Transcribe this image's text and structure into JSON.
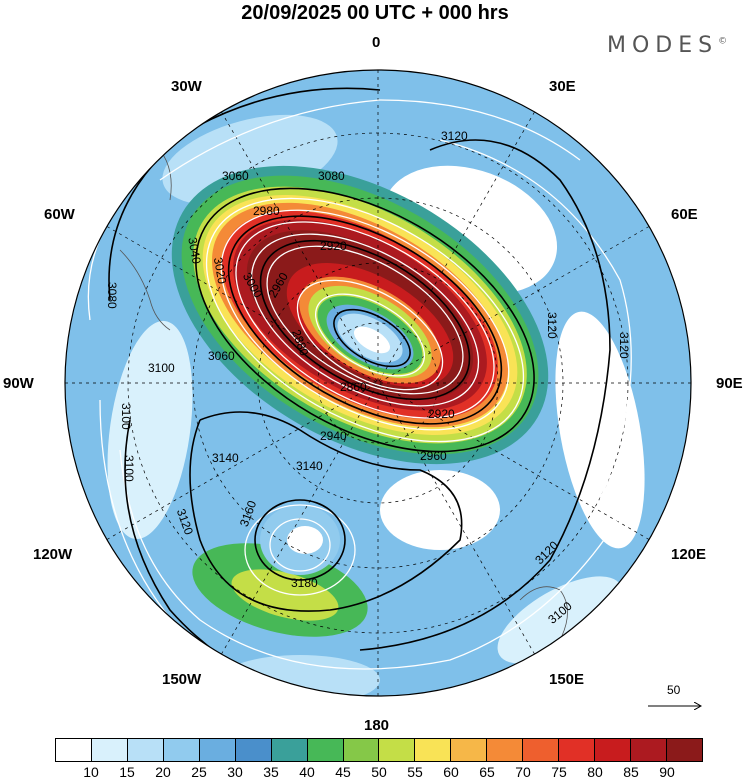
{
  "header": {
    "title": "20/09/2025  00 UTC  + 000 hrs",
    "brand": "MODES",
    "brand_mark": "©"
  },
  "map": {
    "projection": "polar-stereographic",
    "hemisphere": "south",
    "longitude_labels": [
      "0",
      "30E",
      "60E",
      "90E",
      "120E",
      "150E",
      "180",
      "150W",
      "120W",
      "90W",
      "60W",
      "30W"
    ],
    "contour_labels": [
      "3120",
      "3080",
      "3060",
      "2980",
      "2920",
      "3040",
      "3020",
      "3000",
      "2960",
      "2880",
      "2860",
      "2920",
      "2940",
      "2960",
      "3080",
      "3060",
      "3100",
      "3100",
      "3100",
      "3140",
      "3140",
      "3160",
      "3180",
      "3120",
      "3120",
      "3120",
      "3100",
      "3120"
    ],
    "vector_reference": "50"
  },
  "colorbar": {
    "colors": [
      "#ffffff",
      "#d9f1fc",
      "#b8e0f7",
      "#91cbee",
      "#6aaee0",
      "#4a8fcb",
      "#3aa09a",
      "#47b857",
      "#85c848",
      "#c4de47",
      "#f9e356",
      "#f6b748",
      "#f48a37",
      "#ee5f2e",
      "#e13026",
      "#c81c1e",
      "#ac1a20",
      "#8b1a1a"
    ],
    "tick_labels": [
      "10",
      "15",
      "20",
      "25",
      "30",
      "35",
      "40",
      "45",
      "50",
      "55",
      "60",
      "65",
      "70",
      "75",
      "80",
      "85",
      "90"
    ]
  }
}
